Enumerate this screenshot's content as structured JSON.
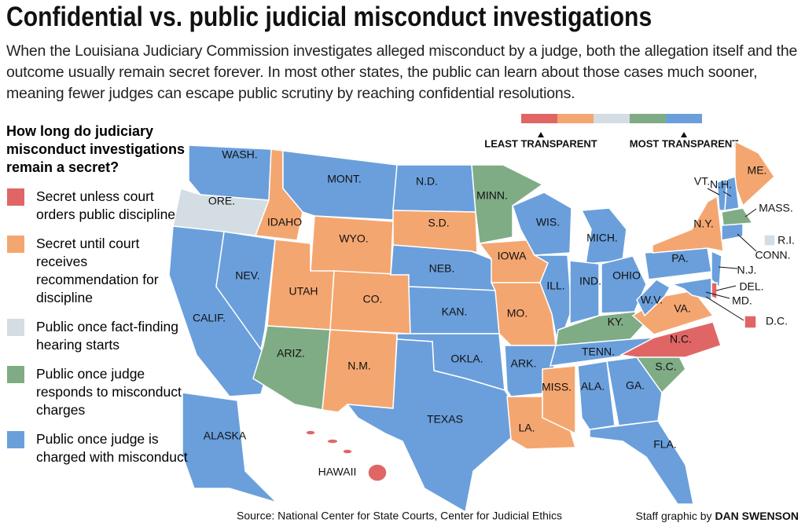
{
  "title": "Confidential vs. public judicial misconduct investigations",
  "subtitle": "When the Louisiana Judiciary Commission investigates alleged misconduct by a judge, both the allegation itself and the outcome usually remain secret forever. In most other states, the public can learn about those cases much sooner, meaning fewer judges can escape public scrutiny by reaching confidential resolutions.",
  "legend": {
    "heading": "How long do judiciary misconduct investigations remain a secret?",
    "items": [
      {
        "label": "Secret unless court orders public discipline",
        "color": "#e06666"
      },
      {
        "label": "Secret until court receives recommendation for discipline",
        "color": "#f4a670"
      },
      {
        "label": "Public once fact-finding hearing starts",
        "color": "#d3dde3"
      },
      {
        "label": "Public once judge responds to misconduct charges",
        "color": "#7fac85"
      },
      {
        "label": "Public once judge is charged with misconduct",
        "color": "#6a9fdc"
      }
    ]
  },
  "scale": {
    "least": "LEAST TRANSPARENT",
    "most": "MOST TRANSPARENT"
  },
  "states": [
    {
      "label": "WASH.",
      "color": "#6a9fdc"
    },
    {
      "label": "ORE.",
      "color": "#d3dde3"
    },
    {
      "label": "CALIF.",
      "color": "#6a9fdc"
    },
    {
      "label": "NEV.",
      "color": "#6a9fdc"
    },
    {
      "label": "IDAHO",
      "color": "#f4a670"
    },
    {
      "label": "MONT.",
      "color": "#6a9fdc"
    },
    {
      "label": "WYO.",
      "color": "#f4a670"
    },
    {
      "label": "UTAH",
      "color": "#f4a670"
    },
    {
      "label": "CO.",
      "color": "#f4a670"
    },
    {
      "label": "ARIZ.",
      "color": "#7fac85"
    },
    {
      "label": "N.M.",
      "color": "#f4a670"
    },
    {
      "label": "N.D.",
      "color": "#6a9fdc"
    },
    {
      "label": "S.D.",
      "color": "#f4a670"
    },
    {
      "label": "NEB.",
      "color": "#6a9fdc"
    },
    {
      "label": "KAN.",
      "color": "#6a9fdc"
    },
    {
      "label": "OKLA.",
      "color": "#6a9fdc"
    },
    {
      "label": "TEXAS",
      "color": "#6a9fdc"
    },
    {
      "label": "MINN.",
      "color": "#7fac85"
    },
    {
      "label": "IOWA",
      "color": "#f4a670"
    },
    {
      "label": "MO.",
      "color": "#f4a670"
    },
    {
      "label": "ARK.",
      "color": "#6a9fdc"
    },
    {
      "label": "LA.",
      "color": "#f4a670"
    },
    {
      "label": "WIS.",
      "color": "#6a9fdc"
    },
    {
      "label": "ILL.",
      "color": "#6a9fdc"
    },
    {
      "label": "MICH.",
      "color": "#6a9fdc"
    },
    {
      "label": "IND.",
      "color": "#6a9fdc"
    },
    {
      "label": "OHIO",
      "color": "#6a9fdc"
    },
    {
      "label": "KY.",
      "color": "#7fac85"
    },
    {
      "label": "TENN.",
      "color": "#6a9fdc"
    },
    {
      "label": "MISS.",
      "color": "#f4a670"
    },
    {
      "label": "ALA.",
      "color": "#6a9fdc"
    },
    {
      "label": "GA.",
      "color": "#6a9fdc"
    },
    {
      "label": "FLA.",
      "color": "#6a9fdc"
    },
    {
      "label": "S.C.",
      "color": "#7fac85"
    },
    {
      "label": "N.C.",
      "color": "#e06666"
    },
    {
      "label": "VA.",
      "color": "#f4a670"
    },
    {
      "label": "W.V.",
      "color": "#6a9fdc"
    },
    {
      "label": "PA.",
      "color": "#6a9fdc"
    },
    {
      "label": "N.Y.",
      "color": "#f4a670"
    },
    {
      "label": "ME.",
      "color": "#f4a670"
    },
    {
      "label": "VT.",
      "color": "#6a9fdc"
    },
    {
      "label": "N.H.",
      "color": "#6a9fdc"
    },
    {
      "label": "MASS.",
      "color": "#7fac85"
    },
    {
      "label": "R.I.",
      "color": "#d3dde3"
    },
    {
      "label": "CONN.",
      "color": "#6a9fdc"
    },
    {
      "label": "N.J.",
      "color": "#6a9fdc"
    },
    {
      "label": "DEL.",
      "color": "#e06666"
    },
    {
      "label": "MD.",
      "color": "#6a9fdc"
    },
    {
      "label": "D.C.",
      "color": "#e06666"
    },
    {
      "label": "ALASKA",
      "color": "#6a9fdc"
    },
    {
      "label": "HAWAII",
      "color": "#e06666"
    }
  ],
  "source": "Source: National Center for State Courts, Center for Judicial Ethics",
  "credit": {
    "prefix": "Staff graphic by",
    "name": "DAN SWENSON"
  }
}
